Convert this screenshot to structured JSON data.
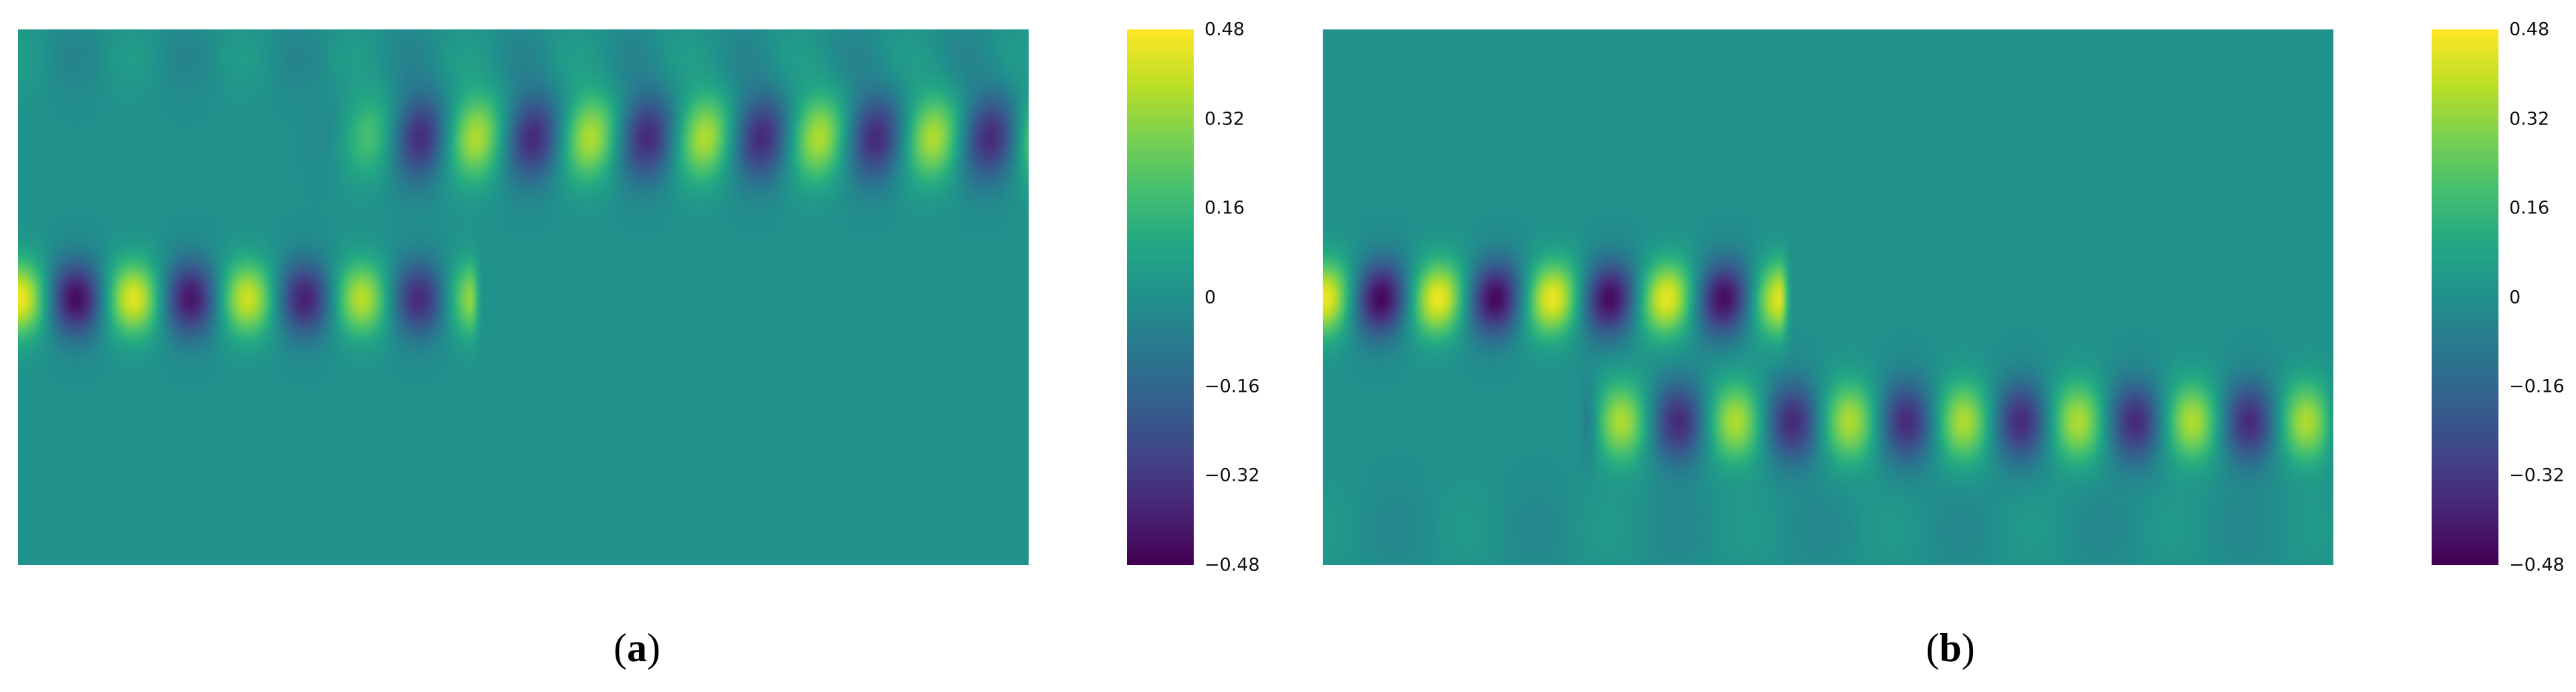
{
  "chart_data": [
    {
      "type": "heatmap",
      "panel_label": "a",
      "colormap": "viridis",
      "colorbar": {
        "min": -0.48,
        "max": 0.48,
        "ticks": [
          "0.48",
          "0.32",
          "0.16",
          "0",
          "−0.16",
          "−0.32",
          "−0.48"
        ]
      },
      "field": {
        "lower_waveguide": {
          "y_center": 0.5,
          "x_end": 0.455,
          "amplitude": 0.46,
          "wavelength": 0.113,
          "phase": 0.0
        },
        "upper_waveguide": {
          "y_center": 0.2,
          "x_start": 0.27,
          "amplitude": 0.36,
          "wavelength": 0.113,
          "phase": 0.0
        }
      }
    },
    {
      "type": "heatmap",
      "panel_label": "b",
      "colormap": "viridis",
      "colorbar": {
        "min": -0.48,
        "max": 0.48,
        "ticks": [
          "0.48",
          "0.32",
          "0.16",
          "0",
          "−0.16",
          "−0.32",
          "−0.48"
        ]
      },
      "field": {
        "upper_waveguide": {
          "y_center": 0.5,
          "x_end": 0.46,
          "amplitude": 0.46,
          "wavelength": 0.113,
          "phase": 0.0
        },
        "lower_waveguide": {
          "y_center": 0.73,
          "x_start": 0.25,
          "amplitude": 0.36,
          "wavelength": 0.113,
          "phase": 0.0
        }
      }
    }
  ]
}
